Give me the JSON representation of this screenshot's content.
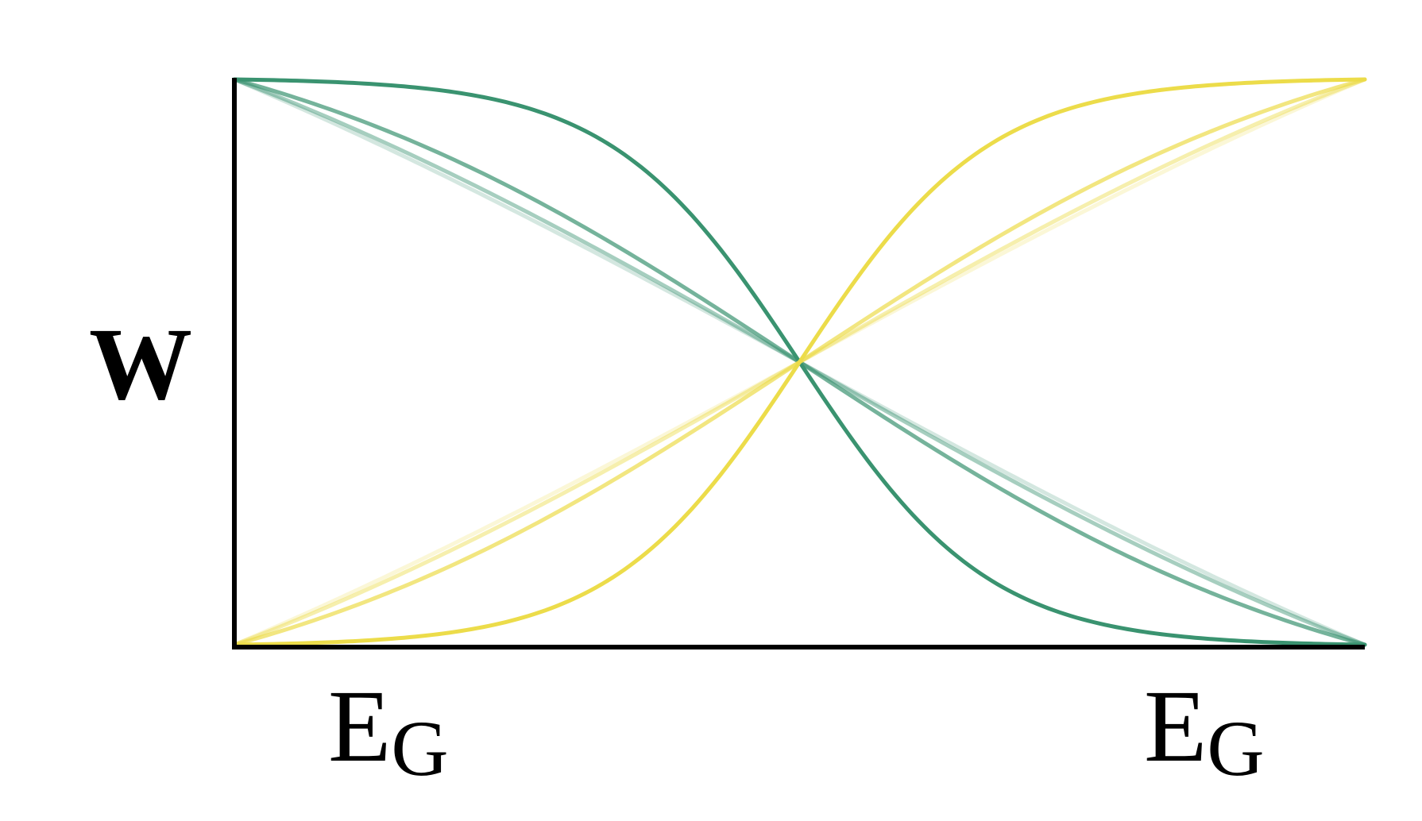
{
  "chart_data": {
    "type": "line",
    "ylabel": "W",
    "xticks": [
      {
        "main": "E",
        "sub": "G"
      },
      {
        "main": "E",
        "sub": "G"
      }
    ],
    "xlim": [
      0,
      1
    ],
    "ylim": [
      0,
      1
    ],
    "crossing": {
      "x": 0.5,
      "y": 0.5
    },
    "colors": {
      "green": "#3a9370",
      "yellow": "#ecdc4a"
    },
    "series": [
      {
        "group": "green",
        "steepness": 12,
        "opacity": 1.0
      },
      {
        "group": "green",
        "steepness": 4,
        "opacity": 0.7
      },
      {
        "group": "green",
        "steepness": 2.6,
        "opacity": 0.45
      },
      {
        "group": "green",
        "steepness": 2,
        "opacity": 0.22
      },
      {
        "group": "yellow",
        "steepness": 12,
        "opacity": 1.0
      },
      {
        "group": "yellow",
        "steepness": 4,
        "opacity": 0.7
      },
      {
        "group": "yellow",
        "steepness": 2.6,
        "opacity": 0.45
      },
      {
        "group": "yellow",
        "steepness": 2,
        "opacity": 0.22
      }
    ],
    "grid": false,
    "legend": "none"
  }
}
